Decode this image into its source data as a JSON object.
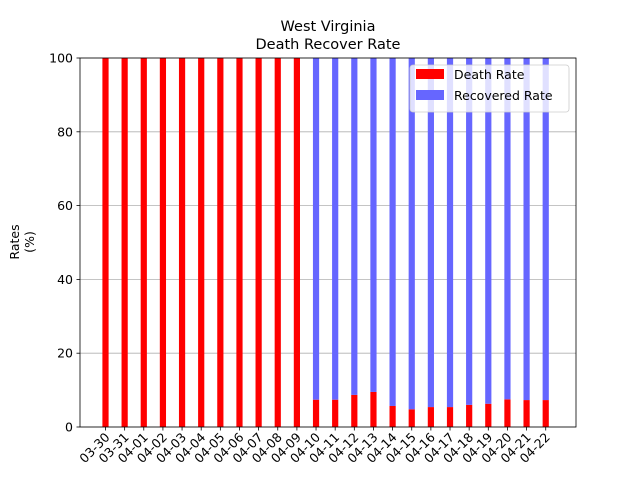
{
  "chart_data": {
    "type": "bar",
    "stacked": true,
    "title": "West Virginia",
    "subtitle": "Death Recover Rate",
    "xlabel": "",
    "ylabel": "Rates\n(%)",
    "ylabel_lines": [
      "Rates",
      "(%)"
    ],
    "ylim": [
      0,
      100
    ],
    "yticks": [
      0,
      20,
      40,
      60,
      80,
      100
    ],
    "grid": "y",
    "legend": "top-right",
    "categories": [
      "03-30",
      "03-31",
      "04-01",
      "04-02",
      "04-03",
      "04-04",
      "04-05",
      "04-06",
      "04-07",
      "04-08",
      "04-09",
      "04-10",
      "04-11",
      "04-12",
      "04-13",
      "04-14",
      "04-15",
      "04-16",
      "04-17",
      "04-18",
      "04-19",
      "04-20",
      "04-21",
      "04-22"
    ],
    "series": [
      {
        "name": "Death Rate",
        "color": "#ff0000",
        "values": [
          100,
          100,
          100,
          100,
          100,
          100,
          100,
          100,
          100,
          100,
          100,
          7.4,
          7.4,
          8.7,
          9.5,
          5.7,
          4.8,
          5.4,
          5.4,
          6.0,
          6.3,
          7.5,
          7.3,
          7.3
        ]
      },
      {
        "name": "Recovered Rate",
        "color": "#6666ff",
        "values": [
          0,
          0,
          0,
          0,
          0,
          0,
          0,
          0,
          0,
          0,
          0,
          92.6,
          92.6,
          91.3,
          90.5,
          94.3,
          95.2,
          94.6,
          94.6,
          94.0,
          93.7,
          92.5,
          92.7,
          92.7
        ]
      }
    ]
  }
}
